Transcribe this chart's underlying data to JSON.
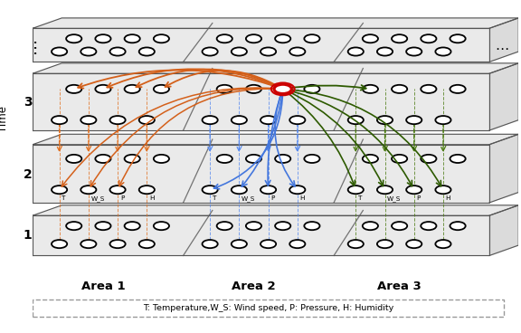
{
  "fig_width": 5.76,
  "fig_height": 3.68,
  "dpi": 100,
  "layer_color": "#e8e8e8",
  "layer_edge_color": "#555555",
  "orange": "#d4601a",
  "blue": "#4477dd",
  "green": "#2d5a00",
  "red": "#cc0000",
  "orange_dash": "#e07020",
  "blue_dash": "#5588ee",
  "green_dash": "#4a7a10",
  "area_names": [
    "Area 1",
    "Area 2",
    "Area 3"
  ],
  "node_labels": [
    "T",
    "W_S",
    "P",
    "H"
  ],
  "legend_text": "T: Temperature,W_S: Wind speed, P: Pressure, H: Humidity"
}
